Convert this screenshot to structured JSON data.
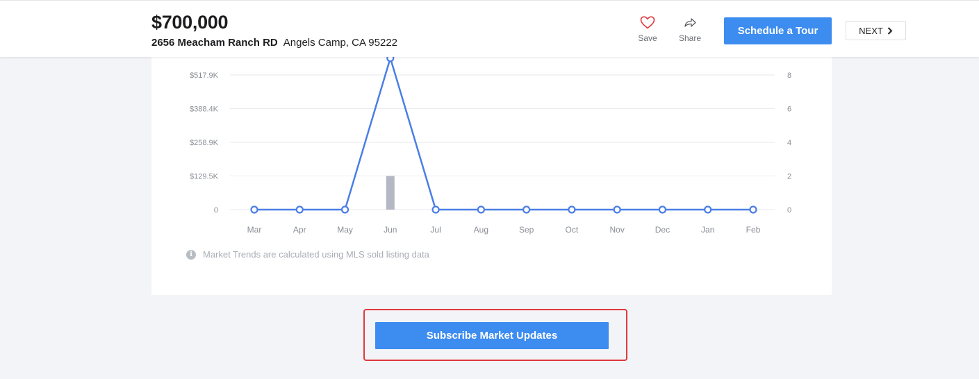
{
  "header": {
    "price": "$700,000",
    "street": "2656 Meacham Ranch RD",
    "city": "Angels Camp, CA 95222",
    "save_label": "Save",
    "share_label": "Share",
    "tour_label": "Schedule a Tour",
    "next_label": "NEXT",
    "save_icon": "heart-icon",
    "share_icon": "share-arrow-icon",
    "next_icon": "chevron-right-icon"
  },
  "colors": {
    "accent": "#3d8cf0",
    "heart": "#e0383e",
    "line": "#4a7ee6",
    "bar": "#b5b8c4",
    "highlight": "#e0383e"
  },
  "chart_data": {
    "type": "bar+line",
    "categories": [
      "Mar",
      "Apr",
      "May",
      "Jun",
      "Jul",
      "Aug",
      "Sep",
      "Oct",
      "Nov",
      "Dec",
      "Jan",
      "Feb"
    ],
    "left_axis_ticks": [
      "0",
      "$129.5K",
      "$258.9K",
      "$388.4K",
      "$517.9K"
    ],
    "right_axis_ticks": [
      "0",
      "2",
      "4",
      "6",
      "8"
    ],
    "left_ylim": [
      0,
      517.9
    ],
    "right_ylim": [
      0,
      8
    ],
    "series": [
      {
        "type": "bar",
        "axis": "left",
        "values": [
          0,
          0,
          0,
          129.5,
          0,
          0,
          0,
          0,
          0,
          0,
          0,
          0
        ]
      },
      {
        "type": "line",
        "axis": "right",
        "values": [
          0,
          0,
          0,
          9,
          0,
          0,
          0,
          0,
          0,
          0,
          0,
          0
        ]
      }
    ],
    "grid": true
  },
  "note": {
    "icon": "info-icon",
    "text": "Market Trends are calculated using MLS sold listing data"
  },
  "subscribe_label": "Subscribe Market Updates"
}
